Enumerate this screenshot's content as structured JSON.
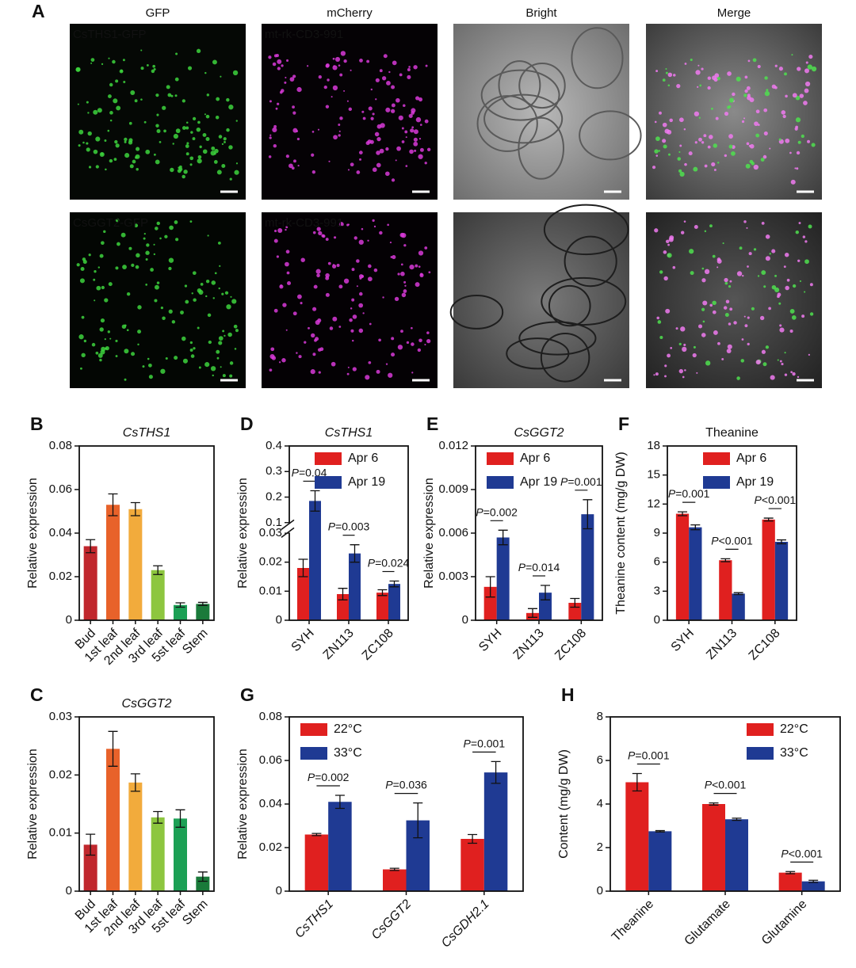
{
  "figure_a": {
    "label": "A",
    "columns": [
      "GFP",
      "mCherry",
      "Bright",
      "Merge"
    ],
    "rows": [
      [
        "CsTHS1-GFP",
        "mt-rk-CD3-991"
      ],
      [
        "CsGGT2-GFP",
        "mt-rk-CD3-991"
      ]
    ]
  },
  "chart_data": [
    {
      "type": "bar",
      "label": "B",
      "title": "CsTHS1",
      "italic_title": true,
      "ylabel": "Relative expression",
      "categories": [
        "Bud",
        "1st leaf",
        "2nd leaf",
        "3rd leaf",
        "5st leaf",
        "Stem"
      ],
      "values": [
        0.034,
        0.053,
        0.051,
        0.023,
        0.007,
        0.0075
      ],
      "errors": [
        0.003,
        0.005,
        0.003,
        0.002,
        0.001,
        0.0007
      ],
      "colors": [
        "#c0272d",
        "#e8622a",
        "#f2ab3c",
        "#8dc63f",
        "#1ca055",
        "#1a7a3a"
      ],
      "ylim": [
        0,
        0.08
      ],
      "yticks": [
        0,
        0.02,
        0.04,
        0.06,
        0.08
      ]
    },
    {
      "type": "bar",
      "label": "C",
      "title": "CsGGT2",
      "italic_title": true,
      "ylabel": "Relative expression",
      "categories": [
        "Bud",
        "1st leaf",
        "2nd leaf",
        "3rd leaf",
        "5st leaf",
        "Stem"
      ],
      "values": [
        0.008,
        0.0245,
        0.0187,
        0.0127,
        0.0125,
        0.0025
      ],
      "errors": [
        0.0018,
        0.003,
        0.0015,
        0.001,
        0.0015,
        0.0008
      ],
      "colors": [
        "#c0272d",
        "#e8622a",
        "#f2ab3c",
        "#8dc63f",
        "#1ca055",
        "#1a7a3a"
      ],
      "ylim": [
        0,
        0.03
      ],
      "yticks": [
        0,
        0.01,
        0.02,
        0.03
      ]
    },
    {
      "type": "grouped-bar",
      "label": "D",
      "title": "CsTHS1",
      "italic_title": true,
      "ylabel": "Relative expression",
      "categories": [
        "SYH",
        "ZN113",
        "ZC108"
      ],
      "series": [
        {
          "name": "Apr 6",
          "color": "#e0201f",
          "values": [
            0.018,
            0.009,
            0.0095
          ],
          "errors": [
            0.003,
            0.002,
            0.001
          ]
        },
        {
          "name": "Apr 19",
          "color": "#1f3a93",
          "values": [
            0.185,
            0.023,
            0.0125
          ],
          "errors": [
            0.04,
            0.003,
            0.001
          ]
        }
      ],
      "comparisons": [
        "P=0.04",
        "P=0.003",
        "P=0.024"
      ],
      "ylim": [
        0,
        0.4
      ],
      "axis_break": [
        0.03,
        0.1
      ],
      "yticks": [
        0,
        0.01,
        0.02,
        0.03,
        0.1,
        0.2,
        0.3,
        0.4
      ],
      "legend": "top-right"
    },
    {
      "type": "grouped-bar",
      "label": "E",
      "title": "CsGGT2",
      "italic_title": true,
      "ylabel": "Relative expression",
      "categories": [
        "SYH",
        "ZN113",
        "ZC108"
      ],
      "series": [
        {
          "name": "Apr 6",
          "color": "#e0201f",
          "values": [
            0.0023,
            0.0005,
            0.0012
          ],
          "errors": [
            0.0007,
            0.0003,
            0.0003
          ]
        },
        {
          "name": "Apr 19",
          "color": "#1f3a93",
          "values": [
            0.0057,
            0.0019,
            0.0073
          ],
          "errors": [
            0.0005,
            0.0005,
            0.001
          ]
        }
      ],
      "comparisons": [
        "P=0.002",
        "P=0.014",
        "P=0.001"
      ],
      "ylim": [
        0,
        0.012
      ],
      "yticks": [
        0,
        0.003,
        0.006,
        0.009,
        0.012
      ],
      "legend": "top-left"
    },
    {
      "type": "grouped-bar",
      "label": "F",
      "title": "Theanine",
      "italic_title": false,
      "ylabel": "Theanine content (mg/g DW)",
      "categories": [
        "SYH",
        "ZN113",
        "ZC108"
      ],
      "series": [
        {
          "name": "Apr 6",
          "color": "#e0201f",
          "values": [
            11.0,
            6.2,
            10.4
          ],
          "errors": [
            0.2,
            0.15,
            0.15
          ]
        },
        {
          "name": "Apr 19",
          "color": "#1f3a93",
          "values": [
            9.6,
            2.75,
            8.1
          ],
          "errors": [
            0.25,
            0.1,
            0.2
          ]
        }
      ],
      "comparisons": [
        "P=0.001",
        "P<0.001",
        "P<0.001"
      ],
      "ylim": [
        0,
        18
      ],
      "yticks": [
        0,
        3,
        6,
        9,
        12,
        15,
        18
      ],
      "legend": "top-right"
    },
    {
      "type": "grouped-bar",
      "label": "G",
      "ylabel": "Relative expression",
      "italic_categories": true,
      "categories": [
        "CsTHS1",
        "CsGGT2",
        "CsGDH2.1"
      ],
      "series": [
        {
          "name": "22°C",
          "color": "#e0201f",
          "values": [
            0.026,
            0.01,
            0.024
          ],
          "errors": [
            0.0005,
            0.0005,
            0.002
          ]
        },
        {
          "name": "33°C",
          "color": "#1f3a93",
          "values": [
            0.041,
            0.0325,
            0.0545
          ],
          "errors": [
            0.003,
            0.008,
            0.005
          ]
        }
      ],
      "comparisons": [
        "P=0.002",
        "P=0.036",
        "P=0.001"
      ],
      "ylim": [
        0,
        0.08
      ],
      "yticks": [
        0,
        0.02,
        0.04,
        0.06,
        0.08
      ],
      "legend": "top-left"
    },
    {
      "type": "grouped-bar",
      "label": "H",
      "ylabel": "Content (mg/g DW)",
      "categories": [
        "Theanine",
        "Glutamate",
        "Glutamine"
      ],
      "series": [
        {
          "name": "22°C",
          "color": "#e0201f",
          "values": [
            5.0,
            4.0,
            0.85
          ],
          "errors": [
            0.4,
            0.05,
            0.05
          ]
        },
        {
          "name": "33°C",
          "color": "#1f3a93",
          "values": [
            2.75,
            3.3,
            0.45
          ],
          "errors": [
            0.03,
            0.05,
            0.05
          ]
        }
      ],
      "comparisons": [
        "P=0.001",
        "P<0.001",
        "P<0.001"
      ],
      "ylim": [
        0,
        8
      ],
      "yticks": [
        0,
        2,
        4,
        6,
        8
      ],
      "legend": "top-right"
    }
  ]
}
